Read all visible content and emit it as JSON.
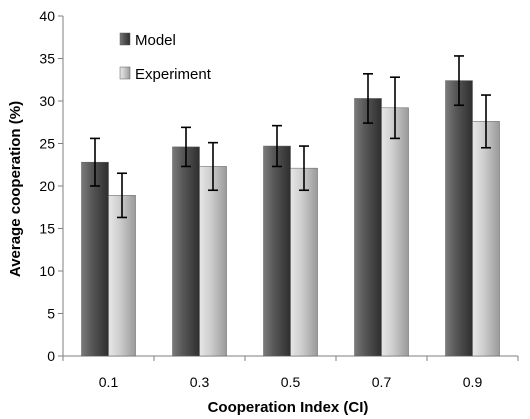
{
  "chart_data": {
    "type": "bar",
    "title": "",
    "xlabel": "Cooperation Index (CI)",
    "ylabel": "Average cooperation (%)",
    "ylim": [
      0,
      40
    ],
    "yticks": [
      "0",
      "5",
      "10",
      "15",
      "20",
      "25",
      "30",
      "35",
      "40"
    ],
    "categories": [
      "0.1",
      "0.3",
      "0.5",
      "0.7",
      "0.9"
    ],
    "legend_position": "top-left",
    "grid": false,
    "series": [
      {
        "name": "Model",
        "color": "#4a4a4a",
        "values": [
          22.8,
          24.6,
          24.7,
          30.3,
          32.4
        ],
        "error": [
          2.8,
          2.3,
          2.4,
          2.9,
          2.9
        ]
      },
      {
        "name": "Experiment",
        "color": "#bdbdbd",
        "values": [
          18.9,
          22.3,
          22.1,
          29.2,
          27.6
        ],
        "error": [
          2.6,
          2.8,
          2.6,
          3.6,
          3.1
        ]
      }
    ]
  }
}
